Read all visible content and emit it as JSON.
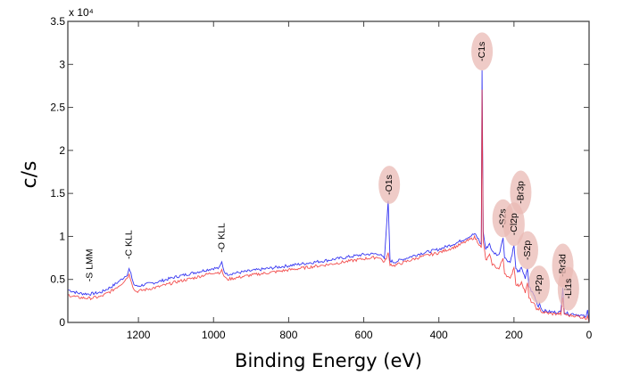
{
  "chart_data": {
    "type": "line",
    "title": "",
    "xlabel": "Binding Energy (eV)",
    "ylabel": "c/s",
    "y_multiplier_label": "x 10⁴",
    "xlim": [
      1388,
      0
    ],
    "ylim": [
      0,
      3.5
    ],
    "x_reversed": true,
    "grid": false,
    "x_ticks": [
      1200,
      1000,
      800,
      600,
      400,
      200,
      0
    ],
    "x_tick_labels": [
      "1200",
      "1000",
      "800",
      "600",
      "400",
      "200",
      "0"
    ],
    "y_ticks": [
      0,
      0.5,
      1,
      1.5,
      2,
      2.5,
      3,
      3.5
    ],
    "y_tick_labels": [
      "0",
      "0.5",
      "1",
      "1.5",
      "2",
      "2.5",
      "3",
      "3.5"
    ],
    "series": [
      {
        "name": "blue spectrum",
        "color": "#2b2bf0",
        "points": [
          [
            1388,
            0.38
          ],
          [
            1360,
            0.34
          ],
          [
            1330,
            0.33
          ],
          [
            1300,
            0.35
          ],
          [
            1270,
            0.42
          ],
          [
            1245,
            0.5
          ],
          [
            1230,
            0.56
          ],
          [
            1225,
            0.62
          ],
          [
            1220,
            0.56
          ],
          [
            1212,
            0.44
          ],
          [
            1205,
            0.42
          ],
          [
            1150,
            0.47
          ],
          [
            1100,
            0.53
          ],
          [
            1050,
            0.58
          ],
          [
            1000,
            0.63
          ],
          [
            985,
            0.63
          ],
          [
            978,
            0.7
          ],
          [
            972,
            0.6
          ],
          [
            965,
            0.56
          ],
          [
            900,
            0.6
          ],
          [
            800,
            0.66
          ],
          [
            700,
            0.72
          ],
          [
            600,
            0.79
          ],
          [
            560,
            0.8
          ],
          [
            545,
            0.74
          ],
          [
            535,
            1.4
          ],
          [
            530,
            0.72
          ],
          [
            520,
            0.7
          ],
          [
            450,
            0.8
          ],
          [
            400,
            0.85
          ],
          [
            350,
            0.93
          ],
          [
            305,
            1.03
          ],
          [
            295,
            0.97
          ],
          [
            287,
            0.9
          ],
          [
            285,
            2.94
          ],
          [
            282,
            1.05
          ],
          [
            275,
            0.85
          ],
          [
            265,
            0.92
          ],
          [
            258,
            0.82
          ],
          [
            240,
            0.78
          ],
          [
            229,
            1.0
          ],
          [
            225,
            0.75
          ],
          [
            210,
            0.7
          ],
          [
            200,
            0.9
          ],
          [
            195,
            0.62
          ],
          [
            185,
            0.58
          ],
          [
            180,
            0.65
          ],
          [
            170,
            0.5
          ],
          [
            164,
            0.63
          ],
          [
            160,
            0.42
          ],
          [
            145,
            0.3
          ],
          [
            135,
            0.18
          ],
          [
            132,
            0.23
          ],
          [
            125,
            0.14
          ],
          [
            100,
            0.12
          ],
          [
            75,
            0.12
          ],
          [
            70,
            0.42
          ],
          [
            66,
            0.12
          ],
          [
            55,
            0.1
          ],
          [
            40,
            0.1
          ],
          [
            20,
            0.08
          ],
          [
            8,
            0.06
          ],
          [
            4,
            0.14
          ],
          [
            0,
            0.0
          ]
        ]
      },
      {
        "name": "red spectrum",
        "color": "#f03030",
        "points": [
          [
            1388,
            0.32
          ],
          [
            1360,
            0.29
          ],
          [
            1330,
            0.28
          ],
          [
            1300,
            0.3
          ],
          [
            1270,
            0.37
          ],
          [
            1245,
            0.45
          ],
          [
            1230,
            0.52
          ],
          [
            1225,
            0.56
          ],
          [
            1220,
            0.5
          ],
          [
            1212,
            0.38
          ],
          [
            1205,
            0.36
          ],
          [
            1150,
            0.41
          ],
          [
            1100,
            0.47
          ],
          [
            1050,
            0.52
          ],
          [
            1000,
            0.58
          ],
          [
            985,
            0.58
          ],
          [
            978,
            0.6
          ],
          [
            972,
            0.54
          ],
          [
            965,
            0.5
          ],
          [
            900,
            0.55
          ],
          [
            800,
            0.61
          ],
          [
            700,
            0.67
          ],
          [
            600,
            0.74
          ],
          [
            560,
            0.76
          ],
          [
            545,
            0.7
          ],
          [
            535,
            0.8
          ],
          [
            530,
            0.68
          ],
          [
            520,
            0.66
          ],
          [
            450,
            0.76
          ],
          [
            400,
            0.81
          ],
          [
            350,
            0.89
          ],
          [
            305,
            0.99
          ],
          [
            295,
            0.93
          ],
          [
            287,
            0.86
          ],
          [
            285,
            2.7
          ],
          [
            282,
            0.95
          ],
          [
            275,
            0.72
          ],
          [
            265,
            0.78
          ],
          [
            258,
            0.68
          ],
          [
            240,
            0.62
          ],
          [
            229,
            0.75
          ],
          [
            225,
            0.58
          ],
          [
            210,
            0.5
          ],
          [
            200,
            0.65
          ],
          [
            195,
            0.45
          ],
          [
            185,
            0.42
          ],
          [
            180,
            0.48
          ],
          [
            170,
            0.35
          ],
          [
            164,
            0.45
          ],
          [
            160,
            0.28
          ],
          [
            145,
            0.2
          ],
          [
            135,
            0.13
          ],
          [
            132,
            0.16
          ],
          [
            125,
            0.12
          ],
          [
            100,
            0.1
          ],
          [
            75,
            0.1
          ],
          [
            70,
            0.28
          ],
          [
            66,
            0.1
          ],
          [
            55,
            0.08
          ],
          [
            40,
            0.08
          ],
          [
            20,
            0.06
          ],
          [
            8,
            0.05
          ],
          [
            4,
            0.08
          ],
          [
            0,
            0.0
          ]
        ]
      }
    ],
    "annotations": [
      {
        "text": "-S LMM",
        "x": 1330,
        "y": 0.42,
        "bubble": false
      },
      {
        "text": "-C KLL",
        "x": 1225,
        "y": 0.66,
        "bubble": false
      },
      {
        "text": "-O KLL",
        "x": 978,
        "y": 0.74,
        "bubble": false
      },
      {
        "text": "-O1s",
        "x": 532,
        "y": 1.42,
        "bubble": true
      },
      {
        "text": "-C1s",
        "x": 285,
        "y": 2.97,
        "bubble": true
      },
      {
        "text": "-S2s",
        "x": 229,
        "y": 1.03,
        "bubble": true
      },
      {
        "text": "-Cl2p",
        "x": 200,
        "y": 0.93,
        "bubble": true
      },
      {
        "text": "-Br3p",
        "x": 182,
        "y": 1.3,
        "bubble": true
      },
      {
        "text": "-S2p",
        "x": 164,
        "y": 0.66,
        "bubble": true
      },
      {
        "text": "-P2p",
        "x": 133,
        "y": 0.26,
        "bubble": true
      },
      {
        "text": "-Br3d",
        "x": 70,
        "y": 0.45,
        "bubble": true
      },
      {
        "text": "-Li1s",
        "x": 55,
        "y": 0.18,
        "bubble": true
      }
    ]
  }
}
